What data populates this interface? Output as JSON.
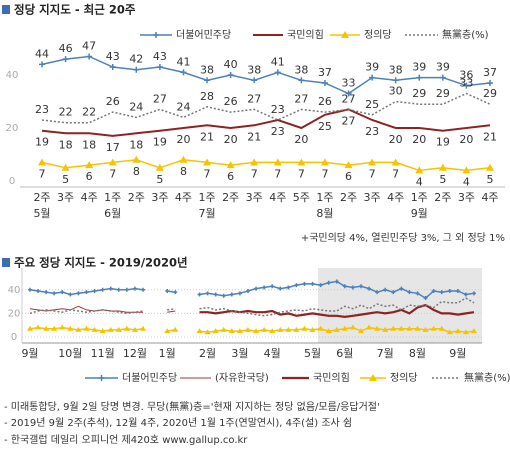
{
  "chart_data": [
    {
      "type": "line",
      "title": "정당 지지도 - 최근 20주",
      "categories": [
        "2주",
        "3주",
        "4주",
        "1주",
        "2주",
        "3주",
        "4주",
        "1주",
        "2주",
        "3주",
        "4주",
        "5주",
        "1주",
        "2주",
        "3주",
        "4주",
        "1주",
        "2주",
        "3주",
        "4주"
      ],
      "month_labels": [
        "5월",
        null,
        null,
        "6월",
        null,
        null,
        null,
        "7월",
        null,
        null,
        null,
        null,
        "8월",
        null,
        null,
        null,
        "9월",
        null,
        null,
        null
      ],
      "ylim": [
        0,
        50
      ],
      "yticks": [
        0,
        20,
        40
      ],
      "grid": false,
      "data_labels": true,
      "annotation": "+국민의당 4%, 열린민주당 3%, 그 외 정당 1%",
      "series": [
        {
          "name": "더불어민주당",
          "color": "#4f81b8",
          "marker": "plus",
          "label_position": "above",
          "values": [
            44,
            46,
            47,
            43,
            42,
            43,
            41,
            38,
            40,
            38,
            41,
            38,
            37,
            33,
            39,
            38,
            39,
            39,
            36,
            37
          ]
        },
        {
          "name": "국민의힘",
          "color": "#8c2424",
          "line_width": 2,
          "label_position": "below",
          "values": [
            19,
            18,
            18,
            17,
            18,
            19,
            20,
            21,
            20,
            21,
            23,
            20,
            25,
            27,
            23,
            20,
            20,
            19,
            20,
            21
          ]
        },
        {
          "name": "정의당",
          "color": "#f5c400",
          "marker": "triangle",
          "label_position": "below",
          "values": [
            7,
            5,
            6,
            7,
            8,
            5,
            8,
            7,
            6,
            7,
            7,
            7,
            7,
            6,
            7,
            7,
            4,
            5,
            4,
            5
          ]
        },
        {
          "name": "無黨층(%)",
          "color": "#777777",
          "dash": true,
          "label_position": "above",
          "values": [
            23,
            22,
            22,
            26,
            24,
            27,
            24,
            28,
            26,
            27,
            23,
            27,
            26,
            27,
            25,
            30,
            29,
            29,
            33,
            29
          ]
        }
      ]
    },
    {
      "type": "line",
      "title": "주요 정당 지지도 - 2019/2020년",
      "categories": [
        "9월",
        null,
        null,
        null,
        null,
        "10월",
        null,
        null,
        null,
        "11월",
        null,
        null,
        null,
        "12월",
        null,
        null,
        null,
        "1월",
        null,
        null,
        null,
        null,
        "2월",
        null,
        null,
        null,
        "3월",
        null,
        null,
        null,
        "4월",
        null,
        null,
        null,
        null,
        "5월",
        null,
        null,
        null,
        "6월",
        null,
        null,
        null,
        null,
        "7월",
        null,
        null,
        null,
        "8월",
        null,
        null,
        null,
        null,
        "9월",
        null,
        null
      ],
      "ylim": [
        0,
        50
      ],
      "yticks": [
        0,
        20,
        40
      ],
      "grid": true,
      "data_labels": false,
      "series": [
        {
          "name": "더불어민주당",
          "color": "#4f81b8",
          "marker": "plus",
          "values": [
            40,
            39,
            38,
            37,
            38,
            36,
            37,
            38,
            39,
            40,
            41,
            40,
            40,
            41,
            40,
            null,
            null,
            39,
            38,
            null,
            null,
            36,
            37,
            36,
            35,
            36,
            37,
            39,
            41,
            42,
            43,
            41,
            42,
            44,
            45,
            45,
            44,
            46,
            47,
            43,
            42,
            43,
            41,
            38,
            40,
            38,
            41,
            38,
            37,
            33,
            39,
            38,
            39,
            39,
            36,
            37
          ]
        },
        {
          "name": "(자유한국당)",
          "color": "#9b3a3a",
          "line_width": 1,
          "values": [
            24,
            23,
            22,
            23,
            24,
            23,
            26,
            23,
            22,
            23,
            22,
            22,
            21,
            21,
            21,
            null,
            null,
            21,
            22,
            null,
            null,
            null,
            null,
            null,
            null,
            null,
            null,
            null,
            null,
            null,
            null,
            null,
            null,
            null,
            null,
            null,
            null,
            null,
            null,
            null,
            null,
            null,
            null,
            null,
            null,
            null,
            null,
            null,
            null,
            null,
            null,
            null,
            null,
            null,
            null,
            null
          ]
        },
        {
          "name": "국민의힘",
          "color": "#8c2424",
          "line_width": 2.2,
          "values": [
            null,
            null,
            null,
            null,
            null,
            null,
            null,
            null,
            null,
            null,
            null,
            null,
            null,
            null,
            null,
            null,
            null,
            null,
            null,
            null,
            null,
            21,
            21,
            20,
            21,
            22,
            21,
            22,
            21,
            21,
            22,
            19,
            20,
            18,
            19,
            20,
            19,
            18,
            18,
            17,
            18,
            19,
            20,
            21,
            20,
            21,
            23,
            20,
            25,
            27,
            23,
            20,
            20,
            19,
            20,
            21
          ]
        },
        {
          "name": "정의당",
          "color": "#f5c400",
          "marker": "triangle",
          "values": [
            7,
            8,
            7,
            7,
            8,
            7,
            6,
            7,
            6,
            5,
            6,
            6,
            7,
            6,
            7,
            null,
            null,
            5,
            6,
            null,
            null,
            5,
            4,
            5,
            6,
            5,
            5,
            6,
            5,
            6,
            5,
            6,
            6,
            6,
            7,
            6,
            7,
            5,
            6,
            7,
            8,
            5,
            8,
            7,
            6,
            7,
            7,
            7,
            7,
            6,
            7,
            7,
            4,
            5,
            4,
            5
          ]
        },
        {
          "name": "無黨층(%)",
          "color": "#777777",
          "dash": true,
          "values": [
            20,
            22,
            23,
            22,
            21,
            23,
            22,
            21,
            22,
            23,
            22,
            21,
            20,
            21,
            22,
            null,
            null,
            23,
            24,
            null,
            null,
            24,
            25,
            23,
            24,
            22,
            21,
            20,
            19,
            18,
            19,
            21,
            22,
            23,
            22,
            24,
            23,
            22,
            22,
            26,
            24,
            27,
            24,
            28,
            26,
            27,
            23,
            27,
            26,
            27,
            25,
            30,
            29,
            29,
            33,
            29
          ]
        }
      ]
    }
  ],
  "notes": [
    "- 미래통합당, 9월 2일 당명 변경. 무당(無黨)층='현재 지지하는 정당 없음/모름/응답거절'",
    "- 2019년 9월 2주(추석), 12월 4주, 2020년 1월 1주(연말연시), 4주(설) 조사 쉼",
    "- 한국갤럽 데일리 오피니언 제420호 www.gallup.co.kr"
  ]
}
